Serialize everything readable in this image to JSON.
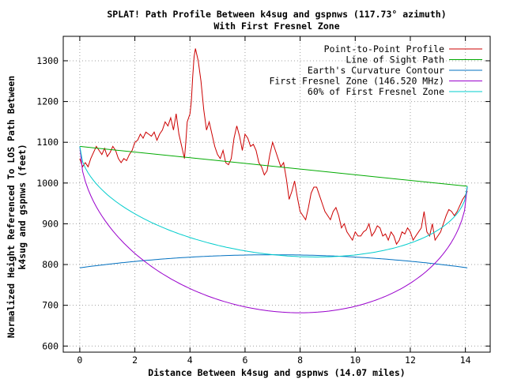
{
  "chart_data": {
    "type": "line",
    "title": "SPLAT! Path Profile Between k4sug and gspnws (117.73° azimuth)",
    "subtitle": "With First Fresnel Zone",
    "xlabel": "Distance Between k4sug and gspnws (14.07 miles)",
    "ylabel_line1": "Normalized Height Referenced To LOS Path Between",
    "ylabel_line2": "k4sug and gspnws (feet)",
    "xlim": [
      -0.6,
      14.9
    ],
    "ylim": [
      585,
      1360
    ],
    "x_ticks": [
      0,
      2,
      4,
      6,
      8,
      10,
      12,
      14
    ],
    "y_ticks": [
      600,
      700,
      800,
      900,
      1000,
      1100,
      1200,
      1300
    ],
    "grid": true,
    "legend_position": "top-right",
    "series": [
      {
        "name": "Point-to-Point Profile",
        "color": "#cc0000",
        "points": [
          [
            0,
            1060
          ],
          [
            0.1,
            1040
          ],
          [
            0.2,
            1050
          ],
          [
            0.3,
            1040
          ],
          [
            0.4,
            1060
          ],
          [
            0.5,
            1075
          ],
          [
            0.6,
            1090
          ],
          [
            0.7,
            1080
          ],
          [
            0.8,
            1070
          ],
          [
            0.9,
            1085
          ],
          [
            1.0,
            1065
          ],
          [
            1.1,
            1075
          ],
          [
            1.2,
            1090
          ],
          [
            1.3,
            1080
          ],
          [
            1.4,
            1060
          ],
          [
            1.5,
            1050
          ],
          [
            1.6,
            1060
          ],
          [
            1.7,
            1055
          ],
          [
            1.8,
            1070
          ],
          [
            1.9,
            1080
          ],
          [
            2.0,
            1100
          ],
          [
            2.1,
            1105
          ],
          [
            2.2,
            1120
          ],
          [
            2.3,
            1110
          ],
          [
            2.4,
            1125
          ],
          [
            2.5,
            1120
          ],
          [
            2.6,
            1115
          ],
          [
            2.7,
            1125
          ],
          [
            2.8,
            1105
          ],
          [
            2.9,
            1120
          ],
          [
            3.0,
            1130
          ],
          [
            3.1,
            1150
          ],
          [
            3.2,
            1140
          ],
          [
            3.3,
            1160
          ],
          [
            3.4,
            1130
          ],
          [
            3.5,
            1170
          ],
          [
            3.6,
            1120
          ],
          [
            3.7,
            1090
          ],
          [
            3.8,
            1060
          ],
          [
            3.85,
            1100
          ],
          [
            3.9,
            1150
          ],
          [
            4.0,
            1170
          ],
          [
            4.05,
            1200
          ],
          [
            4.1,
            1260
          ],
          [
            4.15,
            1310
          ],
          [
            4.2,
            1330
          ],
          [
            4.3,
            1300
          ],
          [
            4.4,
            1250
          ],
          [
            4.5,
            1180
          ],
          [
            4.6,
            1130
          ],
          [
            4.7,
            1150
          ],
          [
            4.8,
            1120
          ],
          [
            4.9,
            1090
          ],
          [
            5.0,
            1070
          ],
          [
            5.1,
            1060
          ],
          [
            5.2,
            1080
          ],
          [
            5.3,
            1050
          ],
          [
            5.4,
            1045
          ],
          [
            5.5,
            1060
          ],
          [
            5.6,
            1110
          ],
          [
            5.7,
            1140
          ],
          [
            5.8,
            1115
          ],
          [
            5.9,
            1080
          ],
          [
            6.0,
            1120
          ],
          [
            6.1,
            1110
          ],
          [
            6.2,
            1090
          ],
          [
            6.3,
            1095
          ],
          [
            6.4,
            1080
          ],
          [
            6.5,
            1050
          ],
          [
            6.6,
            1040
          ],
          [
            6.7,
            1020
          ],
          [
            6.8,
            1030
          ],
          [
            6.9,
            1070
          ],
          [
            7.0,
            1100
          ],
          [
            7.1,
            1080
          ],
          [
            7.2,
            1060
          ],
          [
            7.3,
            1040
          ],
          [
            7.4,
            1050
          ],
          [
            7.5,
            1010
          ],
          [
            7.6,
            960
          ],
          [
            7.7,
            980
          ],
          [
            7.8,
            1005
          ],
          [
            7.9,
            965
          ],
          [
            8.0,
            930
          ],
          [
            8.1,
            920
          ],
          [
            8.2,
            910
          ],
          [
            8.3,
            940
          ],
          [
            8.4,
            975
          ],
          [
            8.5,
            990
          ],
          [
            8.6,
            990
          ],
          [
            8.7,
            970
          ],
          [
            8.8,
            950
          ],
          [
            8.9,
            930
          ],
          [
            9.0,
            920
          ],
          [
            9.1,
            910
          ],
          [
            9.2,
            930
          ],
          [
            9.3,
            940
          ],
          [
            9.4,
            920
          ],
          [
            9.5,
            890
          ],
          [
            9.6,
            900
          ],
          [
            9.7,
            880
          ],
          [
            9.8,
            870
          ],
          [
            9.9,
            860
          ],
          [
            10.0,
            880
          ],
          [
            10.1,
            870
          ],
          [
            10.2,
            870
          ],
          [
            10.3,
            880
          ],
          [
            10.4,
            885
          ],
          [
            10.5,
            900
          ],
          [
            10.6,
            870
          ],
          [
            10.7,
            880
          ],
          [
            10.8,
            895
          ],
          [
            10.9,
            890
          ],
          [
            11.0,
            870
          ],
          [
            11.1,
            875
          ],
          [
            11.2,
            860
          ],
          [
            11.3,
            880
          ],
          [
            11.4,
            870
          ],
          [
            11.5,
            850
          ],
          [
            11.6,
            860
          ],
          [
            11.7,
            880
          ],
          [
            11.8,
            875
          ],
          [
            11.9,
            890
          ],
          [
            12.0,
            880
          ],
          [
            12.1,
            860
          ],
          [
            12.2,
            870
          ],
          [
            12.3,
            880
          ],
          [
            12.4,
            890
          ],
          [
            12.5,
            930
          ],
          [
            12.6,
            880
          ],
          [
            12.7,
            870
          ],
          [
            12.8,
            900
          ],
          [
            12.9,
            860
          ],
          [
            13.0,
            870
          ],
          [
            13.1,
            880
          ],
          [
            13.2,
            900
          ],
          [
            13.3,
            920
          ],
          [
            13.4,
            935
          ],
          [
            13.5,
            930
          ],
          [
            13.6,
            920
          ],
          [
            13.7,
            930
          ],
          [
            13.8,
            945
          ],
          [
            13.9,
            960
          ],
          [
            14.0,
            970
          ],
          [
            14.07,
            980
          ]
        ]
      },
      {
        "name": "Line of Sight Path",
        "color": "#00aa00",
        "points": [
          [
            0,
            1090
          ],
          [
            14.07,
            992
          ]
        ]
      },
      {
        "name": "Earth's Curvature Contour",
        "color": "#0070c0",
        "curve": "parabola",
        "endpoints_value": 792,
        "mid_value": 824
      },
      {
        "name": "First Fresnel Zone (146.520 MHz)",
        "color": "#9900cc",
        "curve": "fresnel",
        "mid_value": 685
      },
      {
        "name": "60% of First Fresnel Zone",
        "color": "#00cccc",
        "curve": "fresnel",
        "mid_value": 824
      }
    ]
  }
}
